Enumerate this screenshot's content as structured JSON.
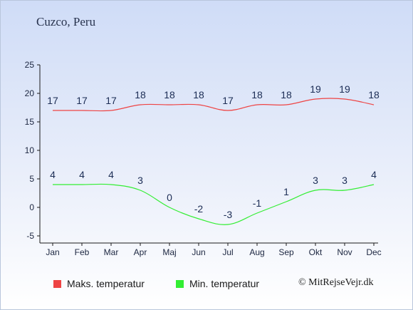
{
  "header": {
    "location": "Cuzco, Peru"
  },
  "chart_data": {
    "type": "line",
    "categories": [
      "Jan",
      "Feb",
      "Mar",
      "Apr",
      "Maj",
      "Jun",
      "Jul",
      "Aug",
      "Sep",
      "Okt",
      "Nov",
      "Dec"
    ],
    "series": [
      {
        "name": "Maks. temperatur",
        "color": "#ee4444",
        "values": [
          17,
          17,
          17,
          18,
          18,
          18,
          17,
          18,
          18,
          19,
          19,
          18
        ]
      },
      {
        "name": "Min. temperatur",
        "color": "#33ee33",
        "values": [
          4,
          4,
          4,
          3,
          0,
          -2,
          -3,
          -1,
          1,
          3,
          3,
          4
        ]
      }
    ],
    "ylim": [
      -5,
      25
    ],
    "yticks": [
      -5,
      0,
      5,
      10,
      15,
      20,
      25
    ],
    "grid": false,
    "legend_position": "bottom-left"
  },
  "legend": {
    "max_label": "Maks. temperatur",
    "min_label": "Min. temperatur",
    "max_color": "#ee4444",
    "min_color": "#33ee33"
  },
  "footer": {
    "copyright": "© MitRejseVejr.dk"
  }
}
